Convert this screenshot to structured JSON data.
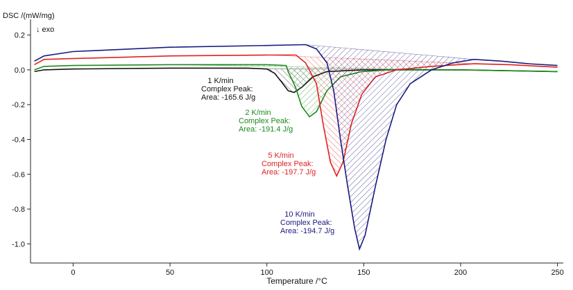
{
  "chart_data": {
    "type": "line",
    "y_label": "DSC /(mW/mg)",
    "direction_label": "↓ exo",
    "x_label": "Temperature /°C",
    "xlim": [
      -22,
      253
    ],
    "ylim": [
      -1.11,
      0.29
    ],
    "xticks": [
      0,
      50,
      100,
      150,
      200,
      250
    ],
    "yticks": [
      0.2,
      {
        "value": 0,
        "label": "0.0"
      },
      -0.2,
      -0.4,
      -0.6,
      -0.8,
      {
        "value": -1,
        "label": "-1.0"
      }
    ],
    "series": [
      {
        "name": "1 K/min",
        "color": "#111111",
        "annotation": [
          "Complex Peak:",
          "Area:  -165.6 J/g"
        ],
        "x": [
          -20,
          -15,
          0,
          50,
          90,
          100,
          104,
          107.6,
          111,
          114,
          118,
          123.8,
          131,
          140,
          150,
          200,
          250
        ],
        "values": [
          -0.01,
          0.0,
          0.005,
          0.01,
          0.01,
          0.005,
          -0.02,
          -0.07,
          -0.12,
          -0.13,
          -0.1,
          -0.04,
          -0.01,
          -0.005,
          0.0,
          0.0,
          -0.01
        ]
      },
      {
        "name": "2 K/min",
        "color": "#1a8a1a",
        "annotation": [
          "Complex Peak:",
          "Area:  -191.4 J/g"
        ],
        "x": [
          -20,
          -15,
          0,
          50,
          100,
          110,
          111,
          114.8,
          118,
          122,
          125.6,
          131,
          138,
          149,
          163,
          200,
          250
        ],
        "values": [
          0.0,
          0.02,
          0.025,
          0.03,
          0.03,
          0.025,
          -0.01,
          -0.1,
          -0.21,
          -0.27,
          -0.24,
          -0.12,
          -0.04,
          -0.01,
          0.0,
          0.0,
          -0.01
        ]
      },
      {
        "name": "5 K/min",
        "color": "#e02020",
        "annotation": [
          "Complex Peak:",
          "Area:  -197.7 J/g"
        ],
        "x": [
          -20,
          -15,
          0,
          50,
          100,
          115,
          120,
          125.6,
          129,
          132.8,
          136,
          139.3,
          143.6,
          149,
          156,
          167,
          185,
          207,
          225,
          250
        ],
        "values": [
          0.03,
          0.06,
          0.065,
          0.08,
          0.085,
          0.085,
          0.04,
          -0.08,
          -0.31,
          -0.53,
          -0.61,
          -0.53,
          -0.31,
          -0.14,
          -0.04,
          0.0,
          0.02,
          0.035,
          0.03,
          0.015
        ]
      },
      {
        "name": "10 K/min",
        "color": "#1a1a80",
        "annotation": [
          "Complex Peak:",
          "Area:  -194.7 J/g"
        ],
        "x": [
          -20,
          -15,
          0,
          50,
          100,
          120,
          125.6,
          131,
          134.5,
          138,
          141.7,
          145.3,
          147.8,
          150.7,
          156,
          161.5,
          167,
          174,
          185,
          196,
          207,
          221,
          235,
          250
        ],
        "values": [
          0.05,
          0.08,
          0.105,
          0.13,
          0.14,
          0.145,
          0.12,
          0.04,
          -0.12,
          -0.4,
          -0.67,
          -0.91,
          -1.03,
          -0.95,
          -0.67,
          -0.4,
          -0.2,
          -0.08,
          0.0,
          0.04,
          0.06,
          0.05,
          0.035,
          0.025
        ]
      }
    ]
  }
}
